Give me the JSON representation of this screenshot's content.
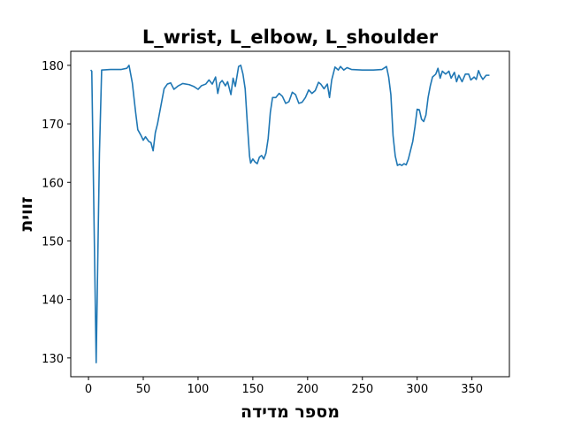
{
  "chart_data": {
    "type": "line",
    "title": "L_wrist, L_elbow, L_shoulder",
    "x_label": "מספר מדידה",
    "y_label": "זווית",
    "x": [
      2,
      3,
      7,
      10,
      12,
      20,
      30,
      35,
      37,
      40,
      43,
      45,
      48,
      50,
      52,
      55,
      57,
      59,
      61,
      63,
      66,
      69,
      72,
      75,
      78,
      82,
      86,
      92,
      96,
      100,
      103,
      107,
      110,
      113,
      116,
      118,
      120,
      122,
      125,
      127,
      130,
      132,
      134,
      137,
      139,
      141,
      143,
      145,
      147,
      148,
      150,
      152,
      154,
      156,
      158,
      160,
      162,
      164,
      166,
      168,
      171,
      174,
      177,
      180,
      183,
      186,
      189,
      192,
      195,
      198,
      201,
      204,
      207,
      210,
      212,
      215,
      218,
      220,
      222,
      225,
      228,
      230,
      233,
      236,
      240,
      250,
      260,
      268,
      272,
      274,
      276,
      278,
      280,
      282,
      284,
      286,
      288,
      290,
      292,
      294,
      296,
      298,
      300,
      302,
      304,
      306,
      308,
      310,
      312,
      314,
      317,
      319,
      321,
      323,
      326,
      329,
      331,
      334,
      336,
      338,
      341,
      344,
      347,
      349,
      352,
      354,
      356,
      358,
      360,
      363,
      366
    ],
    "series": [
      {
        "name": "L_wrist, L_elbow, L_shoulder",
        "color": "#1f77b4",
        "values": [
          179.2,
          179,
          129.2,
          165,
          179.2,
          179.3,
          179.3,
          179.5,
          180,
          177,
          172,
          169,
          168,
          167.2,
          167.8,
          167,
          166.8,
          165.4,
          168.5,
          170,
          173,
          176,
          176.8,
          177,
          175.9,
          176.5,
          176.9,
          176.7,
          176.4,
          175.9,
          176.5,
          176.8,
          177.5,
          176.8,
          178,
          175.2,
          177,
          177.4,
          176.5,
          177.2,
          175,
          177.8,
          176.4,
          179.8,
          180,
          178.5,
          176,
          170,
          164.5,
          163.3,
          164,
          163.5,
          163.2,
          164.3,
          164.6,
          164,
          165,
          167.5,
          172,
          174.5,
          174.5,
          175.2,
          174.7,
          173.5,
          173.8,
          175.4,
          175,
          173.5,
          173.7,
          174.5,
          175.8,
          175.2,
          175.7,
          177.1,
          176.8,
          176,
          176.8,
          174.5,
          177.5,
          179.7,
          179.2,
          179.8,
          179.2,
          179.6,
          179.3,
          179.2,
          179.2,
          179.3,
          179.8,
          178,
          175,
          168,
          164.5,
          162.9,
          163.1,
          162.9,
          163.2,
          163,
          164,
          165.5,
          167,
          169.5,
          172.5,
          172.4,
          170.8,
          170.4,
          171.5,
          174.5,
          176.5,
          178,
          178.5,
          179.5,
          177.8,
          179,
          178.5,
          179,
          177.8,
          178.8,
          177.2,
          178.3,
          177.2,
          178.5,
          178.5,
          177.5,
          178,
          177.6,
          179.1,
          178.2,
          177.6,
          178.3,
          178.3
        ]
      }
    ],
    "xlim": [
      -16.2,
      384.2
    ],
    "xticks": [
      0,
      50,
      100,
      150,
      200,
      250,
      300,
      350
    ],
    "ylim": [
      126.8,
      182.4
    ],
    "yticks": [
      130,
      140,
      150,
      160,
      170,
      180
    ],
    "grid": false
  }
}
